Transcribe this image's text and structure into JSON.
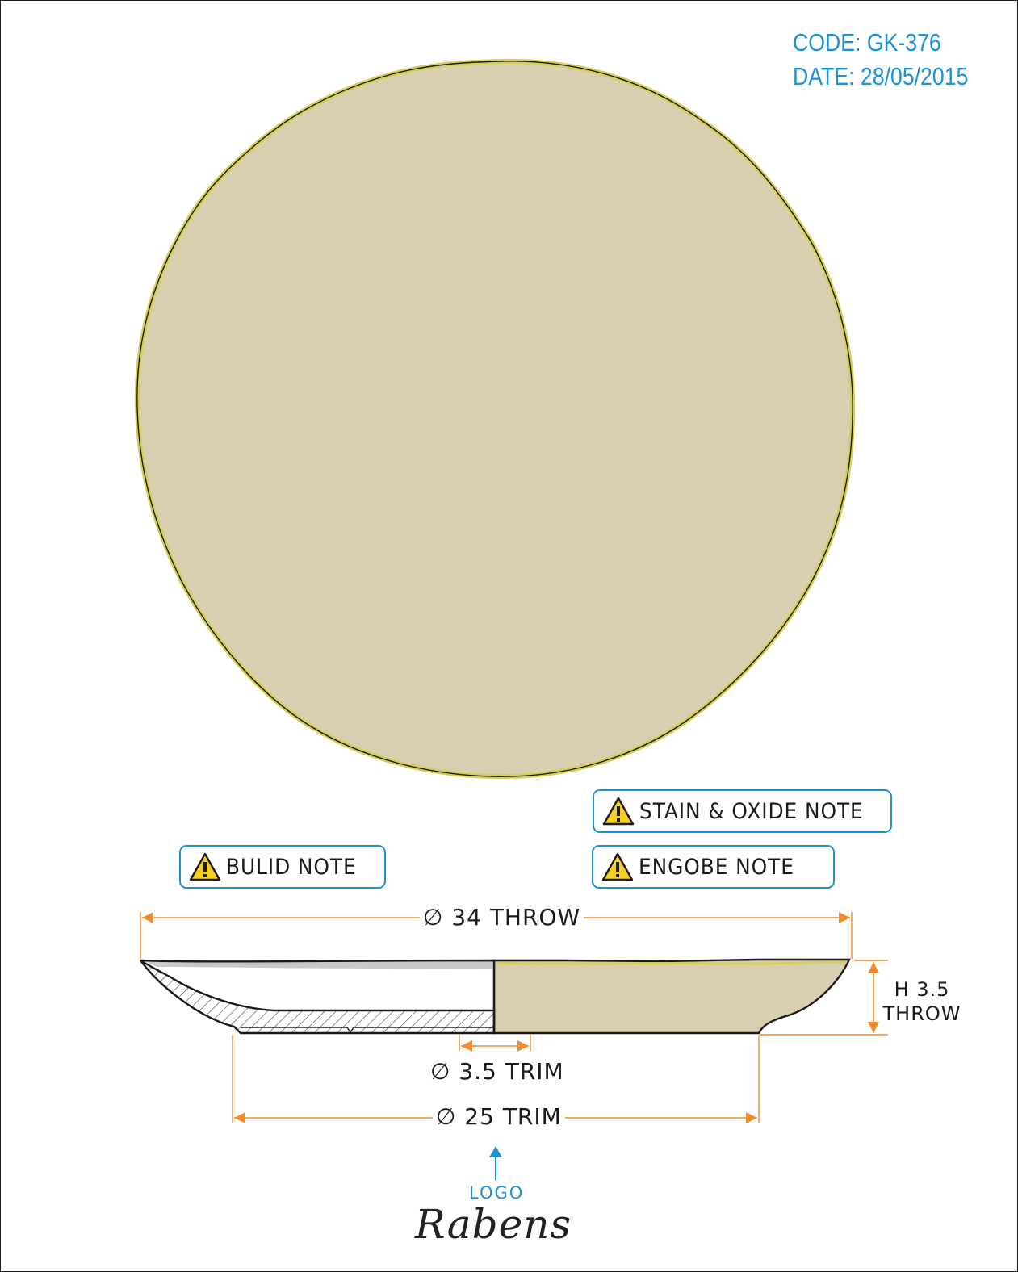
{
  "header": {
    "code": "CODE: GK-376",
    "date": "DATE: 28/05/2015"
  },
  "notes": {
    "stain_oxide": "STAIN & OXIDE NOTE",
    "engobe": "ENGOBE NOTE",
    "build": "BULID NOTE"
  },
  "dimensions": {
    "throw_diameter": "∅ 34 THROW",
    "height_line1": "H 3.5",
    "height_line2": "THROW",
    "foot_trim": "∅ 3.5 TRIM",
    "base_trim": "∅ 25 TRIM"
  },
  "logo": {
    "label": "LOGO",
    "brand": "Rabens"
  },
  "colors": {
    "glaze_fill": "#d9ceb0",
    "rim_accent": "#d6cf55",
    "dimension_orange": "#f08a2a",
    "note_blue": "#1c92d2",
    "outline": "#1a1a1a"
  },
  "icons": {
    "warning": "warning-triangle-icon",
    "logo_arrow": "up-arrow-icon"
  }
}
